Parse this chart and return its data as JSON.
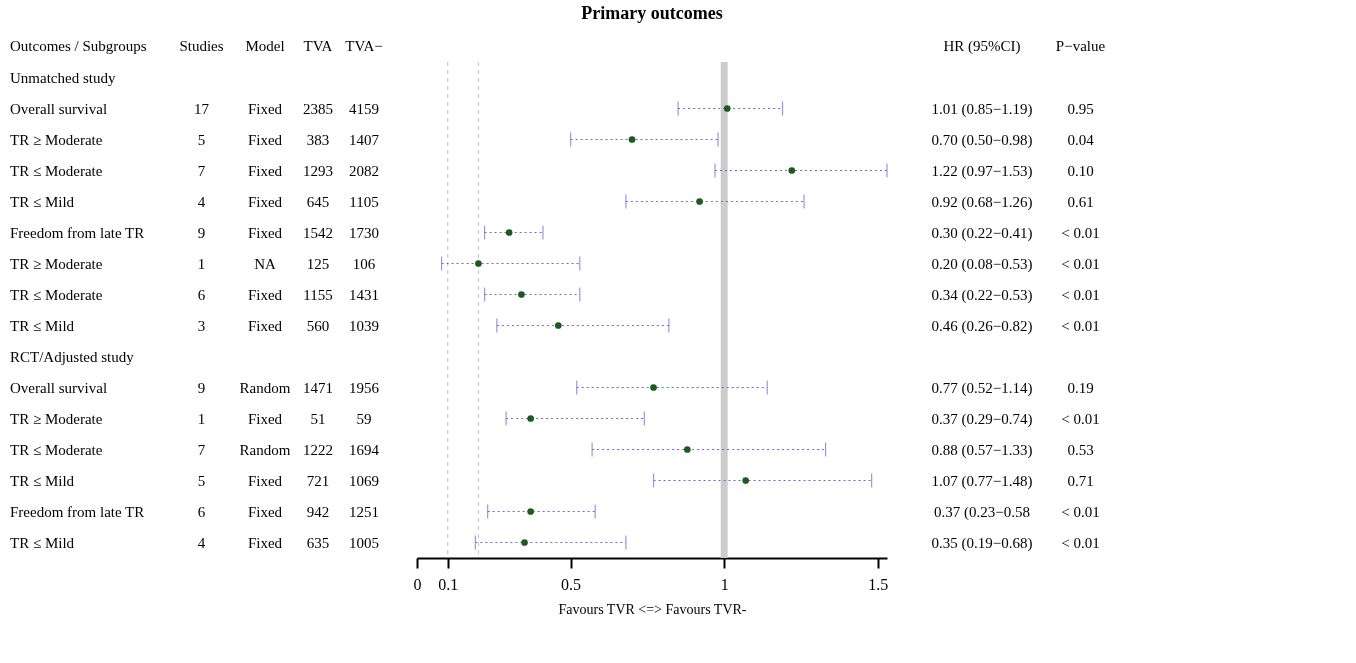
{
  "chart_data": [
    {
      "type": "other",
      "categories": [
        "Outcomes / Subgroups",
        "Studies",
        "Model",
        "TVA",
        "TVA−"
      ],
      "cell_labels": [
        [
          "Unmatched study",
          null,
          null,
          null,
          null
        ],
        [
          "Overall survival",
          "17",
          "Fixed",
          "2385",
          "4159"
        ],
        [
          "TR ≥ Moderate",
          "5",
          "Fixed",
          "383",
          "1407"
        ],
        [
          "TR ≤ Moderate",
          "7",
          "Fixed",
          "1293",
          "2082"
        ],
        [
          "TR ≤ Mild",
          "4",
          "Fixed",
          "645",
          "1105"
        ],
        [
          "Freedom from late TR",
          "9",
          "Fixed",
          "1542",
          "1730"
        ],
        [
          "TR ≥ Moderate",
          "1",
          "NA",
          "125",
          "106"
        ],
        [
          "TR ≤ Moderate",
          "6",
          "Fixed",
          "1155",
          "1431"
        ],
        [
          "TR ≤ Mild",
          "3",
          "Fixed",
          "560",
          "1039"
        ],
        [
          "RCT/Adjusted study",
          null,
          null,
          null,
          null
        ],
        [
          "Overall survival",
          "9",
          "Random",
          "1471",
          "1956"
        ],
        [
          "TR ≥ Moderate",
          "1",
          "Fixed",
          "51",
          "59"
        ],
        [
          "TR ≤ Moderate",
          "7",
          "Random",
          "1222",
          "1694"
        ],
        [
          "TR ≤ Mild",
          "5",
          "Fixed",
          "721",
          "1069"
        ],
        [
          "Freedom from late TR",
          "6",
          "Fixed",
          "942",
          "1251"
        ],
        [
          "TR ≤ Mild",
          "4",
          "Fixed",
          "635",
          "1005"
        ]
      ]
    },
    {
      "type": "scatter",
      "orientation": "horizontal",
      "title": "Primary outcomes",
      "xlabel": "Favours TVR  <=>  Favours TVR-",
      "marker": "circle",
      "color": "#1e5a1e",
      "categories": [
        null,
        null,
        null,
        null,
        null,
        null,
        null,
        null,
        null,
        null,
        null,
        null,
        null,
        null,
        null,
        null
      ],
      "values": [
        null,
        1.01,
        0.7,
        1.22,
        0.92,
        0.3,
        0.2,
        0.34,
        0.46,
        null,
        0.77,
        0.37,
        0.88,
        1.07,
        0.37,
        0.35
      ],
      "errors": [
        null,
        [
          0.85,
          1.19
        ],
        [
          0.5,
          0.98
        ],
        [
          0.97,
          1.53
        ],
        [
          0.68,
          1.26
        ],
        [
          0.22,
          0.41
        ],
        [
          0.08,
          0.53
        ],
        [
          0.22,
          0.53
        ],
        [
          0.26,
          0.82
        ],
        null,
        [
          0.52,
          1.14
        ],
        [
          0.29,
          0.74
        ],
        [
          0.57,
          1.33
        ],
        [
          0.77,
          1.48
        ],
        [
          0.23,
          0.58
        ],
        [
          0.19,
          0.68
        ]
      ],
      "xlim": [
        0,
        1.53
      ],
      "xticks": [
        0,
        0.1,
        0.5,
        1,
        1.5
      ],
      "ref_lines": [
        {
          "axis": "x",
          "value": 0.1,
          "color": "#cccccc",
          "line_style": "dashed"
        },
        {
          "axis": "x",
          "value": 0.2,
          "color": "#cccccc",
          "line_style": "dashed"
        },
        {
          "axis": "x",
          "value": 1,
          "color": "#cccccc",
          "line_style": "solid"
        }
      ]
    },
    {
      "type": "other",
      "categories": [
        "HR (95%CI)",
        "P−value"
      ],
      "cell_labels": [
        [
          null,
          null
        ],
        [
          "1.01 (0.85−1.19)",
          "0.95"
        ],
        [
          "0.70 (0.50−0.98)",
          "0.04"
        ],
        [
          "1.22 (0.97−1.53)",
          "0.10"
        ],
        [
          "0.92 (0.68−1.26)",
          "0.61"
        ],
        [
          "0.30 (0.22−0.41)",
          "< 0.01"
        ],
        [
          "0.20 (0.08−0.53)",
          "< 0.01"
        ],
        [
          "0.34 (0.22−0.53)",
          "< 0.01"
        ],
        [
          "0.46 (0.26−0.82)",
          "< 0.01"
        ],
        [
          null,
          null
        ],
        [
          "0.77 (0.52−1.14)",
          "0.19"
        ],
        [
          "0.37 (0.29−0.74)",
          "< 0.01"
        ],
        [
          "0.88 (0.57−1.33)",
          "0.53"
        ],
        [
          "1.07 (0.77−1.48)",
          "0.71"
        ],
        [
          "0.37 (0.23−0.58",
          "< 0.01"
        ],
        [
          "0.35 (0.19−0.68)",
          "< 0.01"
        ]
      ]
    }
  ]
}
